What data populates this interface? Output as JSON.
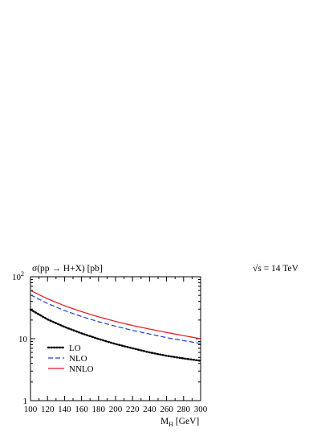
{
  "chart_data": {
    "type": "line",
    "title": "σ(pp → H+X) [pb]",
    "annotation": "√s = 14 TeV",
    "xlabel": "M_H [GeV]",
    "xlabel_main": "M",
    "xlabel_sub": "H",
    "xlabel_unit": " [GeV]",
    "ylabel": "",
    "xlim": [
      100,
      300
    ],
    "ylim": [
      1,
      100
    ],
    "y_scale": "log",
    "x_ticks": [
      100,
      120,
      140,
      160,
      180,
      200,
      220,
      240,
      260,
      280,
      300
    ],
    "y_ticks": [
      {
        "value": 1,
        "label": "1"
      },
      {
        "value": 10,
        "label": "10"
      },
      {
        "value": 100,
        "label": "10",
        "exponent": "2"
      }
    ],
    "grid": false,
    "legend_placement": "lower-left",
    "x": [
      100,
      120,
      140,
      160,
      180,
      200,
      220,
      240,
      260,
      280,
      300
    ],
    "series": [
      {
        "name": "LO",
        "color": "#000000",
        "style": "dotted",
        "values": [
          29.5,
          20.5,
          15.5,
          12.2,
          9.9,
          8.2,
          7.0,
          6.0,
          5.3,
          4.8,
          4.4
        ]
      },
      {
        "name": "NLO",
        "color": "#1a3fd6",
        "style": "dashed",
        "values": [
          51,
          37,
          28.5,
          22.8,
          18.8,
          15.9,
          13.6,
          11.9,
          10.4,
          9.3,
          8.4
        ]
      },
      {
        "name": "NNLO",
        "color": "#e8141a",
        "style": "solid",
        "values": [
          60,
          44,
          34,
          27.3,
          22.5,
          19.0,
          16.3,
          14.3,
          12.6,
          11.2,
          10.0
        ]
      }
    ]
  }
}
